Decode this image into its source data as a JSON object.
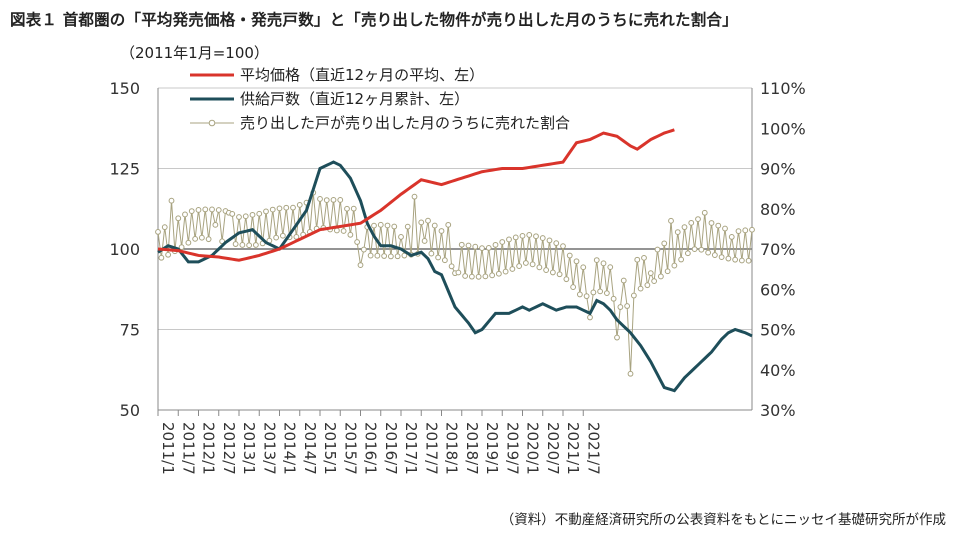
{
  "header": {
    "title": "図表１ 首都圏の「平均発売価格・発売戸数」と「売り出した物件が売り出した月のうちに売れた割合」",
    "subtitle": "（2011年1月=100）"
  },
  "footer": {
    "source": "（資料）不動産経済研究所の公表資料をもとにニッセイ基礎研究所が作成"
  },
  "colors": {
    "price": "#d9342b",
    "supply": "#1e4e5a",
    "ratio": "#a8a380",
    "grid": "#c8c8c8",
    "baseline": "#555555"
  },
  "chart_data": {
    "type": "line",
    "left_axis": {
      "ylim": [
        50,
        150
      ],
      "ticks": [
        "50",
        "75",
        "100",
        "125",
        "150"
      ]
    },
    "right_axis": {
      "ylim": [
        30,
        110
      ],
      "ticks": [
        "30%",
        "40%",
        "50%",
        "60%",
        "70%",
        "80%",
        "90%",
        "100%",
        "110%"
      ]
    },
    "x_labels": [
      "2011/1",
      "2011/7",
      "2012/1",
      "2012/7",
      "2013/1",
      "2013/7",
      "2014/1",
      "2014/7",
      "2015/1",
      "2015/7",
      "2016/1",
      "2016/7",
      "2017/1",
      "2017/7",
      "2018/1",
      "2018/7",
      "2019/1",
      "2019/7",
      "2020/1",
      "2020/7",
      "2021/1",
      "2021/7"
    ],
    "x_start": "2011/1",
    "n_months": 133,
    "series": [
      {
        "name": "平均価格（直近12ヶ月の平均、左）",
        "axis": "left",
        "style": "line",
        "anchors": [
          [
            0,
            100
          ],
          [
            6,
            99.5
          ],
          [
            12,
            98
          ],
          [
            18,
            97.5
          ],
          [
            24,
            96.5
          ],
          [
            30,
            98
          ],
          [
            36,
            100
          ],
          [
            42,
            103
          ],
          [
            48,
            106
          ],
          [
            54,
            107
          ],
          [
            60,
            108
          ],
          [
            66,
            112
          ],
          [
            72,
            117
          ],
          [
            78,
            121.5
          ],
          [
            84,
            120
          ],
          [
            90,
            122
          ],
          [
            96,
            124
          ],
          [
            102,
            125
          ],
          [
            108,
            125
          ],
          [
            114,
            126
          ],
          [
            120,
            127
          ],
          [
            124,
            133
          ],
          [
            128,
            134
          ],
          [
            132,
            136
          ],
          [
            136,
            135
          ],
          [
            140,
            132
          ],
          [
            142,
            131
          ],
          [
            146,
            134
          ],
          [
            150,
            136
          ],
          [
            153,
            137
          ]
        ]
      },
      {
        "name": "供給戸数（直近12ヶ月累計、左）",
        "axis": "left",
        "style": "line",
        "anchors": [
          [
            0,
            99
          ],
          [
            3,
            101
          ],
          [
            6,
            100
          ],
          [
            9,
            96
          ],
          [
            12,
            96
          ],
          [
            16,
            98
          ],
          [
            20,
            102
          ],
          [
            24,
            105
          ],
          [
            28,
            106
          ],
          [
            32,
            102
          ],
          [
            36,
            100
          ],
          [
            40,
            106
          ],
          [
            44,
            112
          ],
          [
            48,
            125
          ],
          [
            52,
            127
          ],
          [
            54,
            126
          ],
          [
            57,
            122
          ],
          [
            60,
            115
          ],
          [
            62,
            108
          ],
          [
            64,
            104
          ],
          [
            66,
            101
          ],
          [
            69,
            101
          ],
          [
            72,
            100
          ],
          [
            75,
            98
          ],
          [
            78,
            99
          ],
          [
            80,
            97
          ],
          [
            82,
            93
          ],
          [
            84,
            92
          ],
          [
            88,
            82
          ],
          [
            92,
            77
          ],
          [
            94,
            74
          ],
          [
            96,
            75
          ],
          [
            100,
            80
          ],
          [
            104,
            80
          ],
          [
            108,
            82
          ],
          [
            110,
            81
          ],
          [
            114,
            83
          ],
          [
            118,
            81
          ],
          [
            121,
            82
          ],
          [
            124,
            82
          ],
          [
            128,
            80
          ],
          [
            130,
            84
          ],
          [
            132,
            83
          ],
          [
            134,
            81
          ],
          [
            136,
            78
          ],
          [
            138,
            76
          ],
          [
            140,
            74
          ],
          [
            143,
            70
          ],
          [
            146,
            65
          ],
          [
            150,
            57
          ],
          [
            153,
            56
          ],
          [
            156,
            60
          ],
          [
            160,
            64
          ],
          [
            164,
            68
          ],
          [
            167,
            72
          ],
          [
            169,
            74
          ],
          [
            171,
            75
          ],
          [
            174,
            74
          ],
          [
            176,
            73
          ]
        ]
      },
      {
        "name": "売り出した戸が売り出した月のうちに売れた割合",
        "axis": "right",
        "style": "markers",
        "base": [
          [
            0,
            72
          ],
          [
            10,
            75
          ],
          [
            20,
            76
          ],
          [
            30,
            75
          ],
          [
            40,
            76
          ],
          [
            48,
            80
          ],
          [
            56,
            78
          ],
          [
            62,
            71
          ],
          [
            66,
            72
          ],
          [
            74,
            73
          ],
          [
            80,
            73
          ],
          [
            84,
            70
          ],
          [
            90,
            67
          ],
          [
            100,
            68
          ],
          [
            110,
            69
          ],
          [
            120,
            68
          ],
          [
            126,
            62
          ],
          [
            130,
            63
          ],
          [
            134,
            61
          ],
          [
            138,
            58
          ],
          [
            142,
            64
          ],
          [
            150,
            68
          ],
          [
            160,
            73
          ],
          [
            170,
            72
          ],
          [
            176,
            71
          ]
        ],
        "amplitude": 4.5,
        "spikes": [
          [
            4,
            82
          ],
          [
            17,
            76
          ],
          [
            21,
            79
          ],
          [
            46,
            84
          ],
          [
            56,
            80
          ],
          [
            60,
            66
          ],
          [
            72,
            73
          ],
          [
            76,
            83
          ],
          [
            79,
            72
          ],
          [
            86,
            76
          ],
          [
            88,
            64
          ],
          [
            128,
            53
          ],
          [
            136,
            48
          ],
          [
            140,
            39
          ],
          [
            146,
            64
          ],
          [
            152,
            77
          ],
          [
            162,
            79
          ],
          [
            170,
            73
          ]
        ]
      }
    ]
  }
}
